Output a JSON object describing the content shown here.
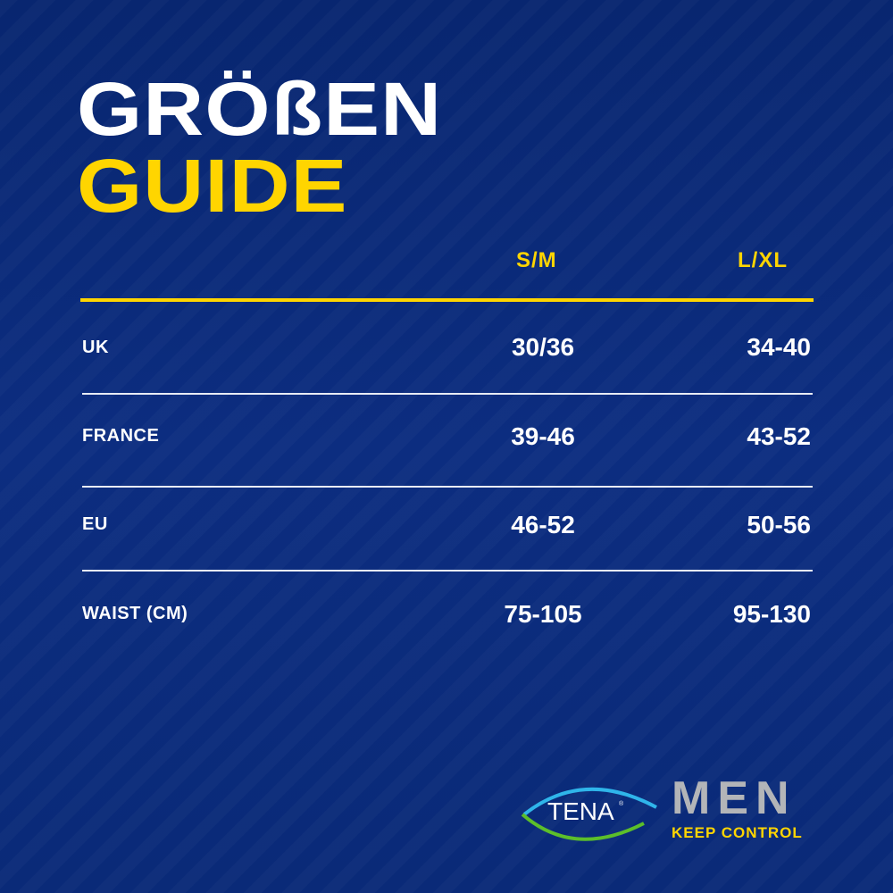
{
  "title": {
    "line1": "GRÖßEN",
    "line2": "GUIDE"
  },
  "colors": {
    "background": "#0b2a78",
    "accent": "#ffd500",
    "text": "#ffffff",
    "logo_gray": "#b3b5b8"
  },
  "table": {
    "columns": [
      "S/M",
      "L/XL"
    ],
    "rows": [
      {
        "label": "UK",
        "values": [
          "30/36",
          "34-40"
        ]
      },
      {
        "label": "FRANCE",
        "values": [
          "39-46",
          "43-52"
        ]
      },
      {
        "label": "EU",
        "values": [
          "46-52",
          "50-56"
        ]
      },
      {
        "label": "WAIST (CM)",
        "values": [
          "75-105",
          "95-130"
        ]
      }
    ]
  },
  "brand": {
    "logo": "TENA",
    "product": "MEN",
    "tagline": "KEEP CONTROL"
  }
}
